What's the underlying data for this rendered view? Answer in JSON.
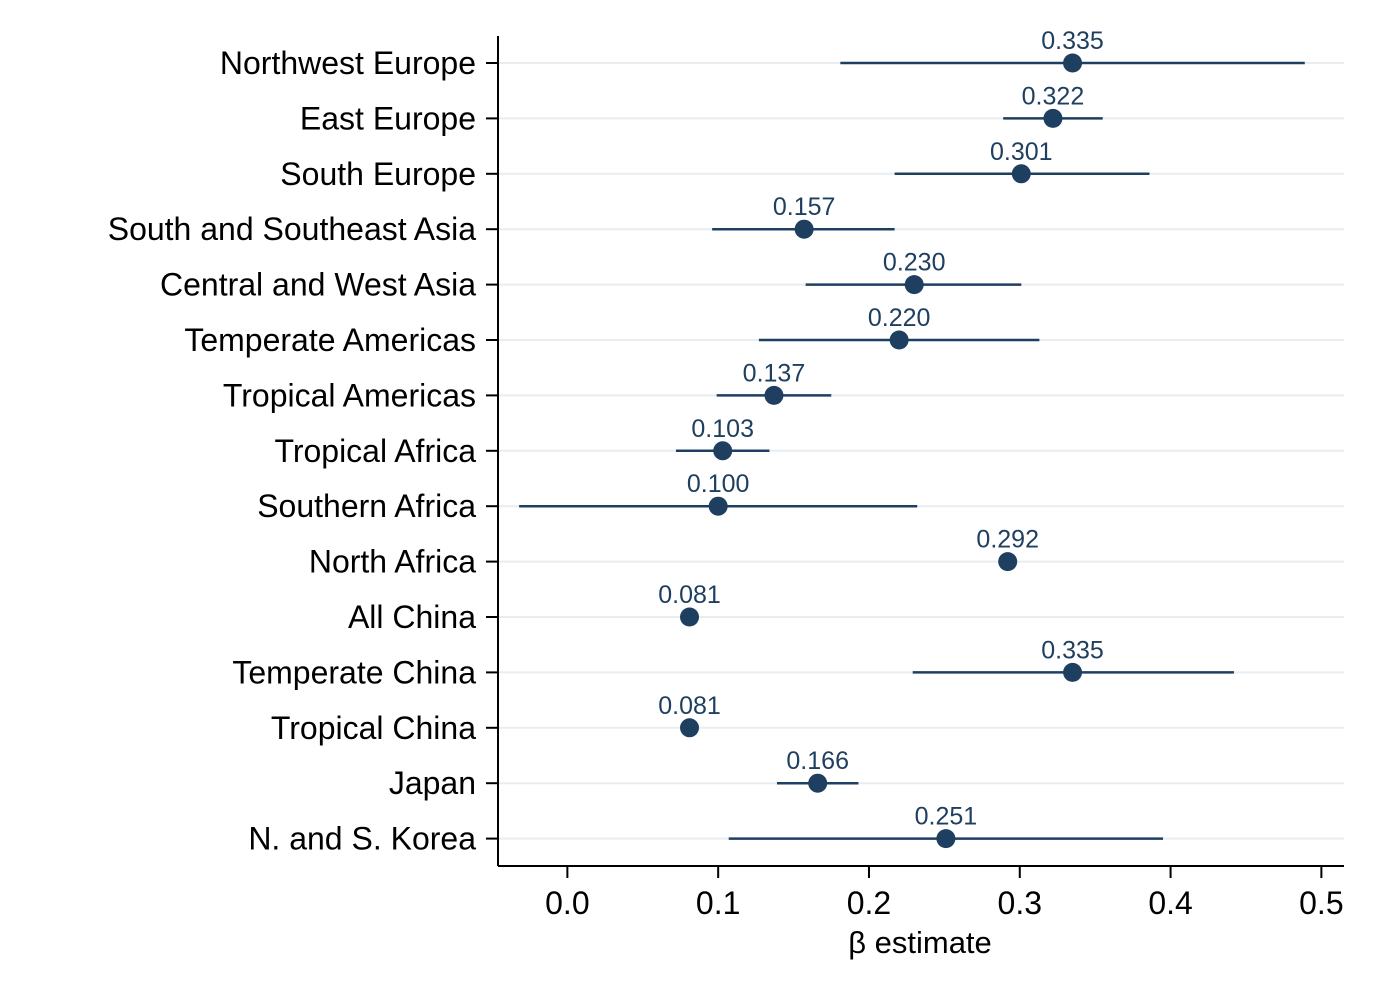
{
  "chart_data": {
    "type": "scatter",
    "orientation": "horizontal",
    "title": "",
    "xlabel": "β estimate",
    "ylabel": "",
    "xlim": [
      -0.046,
      0.515
    ],
    "xticks": [
      0.0,
      0.1,
      0.2,
      0.3,
      0.4,
      0.5
    ],
    "xtick_labels": [
      "0.0",
      "0.1",
      "0.2",
      "0.3",
      "0.4",
      "0.5"
    ],
    "grid": "horizontal",
    "legend": "none",
    "colors": {
      "marker": "#1f3f60",
      "grid": "#e8eef0",
      "axis": "#000000"
    },
    "points": [
      {
        "label": "Northwest Europe",
        "estimate": 0.335,
        "value_label": "0.335",
        "ci": [
          0.181,
          0.489
        ]
      },
      {
        "label": "East Europe",
        "estimate": 0.322,
        "value_label": "0.322",
        "ci": [
          0.289,
          0.355
        ]
      },
      {
        "label": "South Europe",
        "estimate": 0.301,
        "value_label": "0.301",
        "ci": [
          0.217,
          0.386
        ]
      },
      {
        "label": "South and Southeast Asia",
        "estimate": 0.157,
        "value_label": "0.157",
        "ci": [
          0.096,
          0.217
        ]
      },
      {
        "label": "Central and West Asia",
        "estimate": 0.23,
        "value_label": "0.230",
        "ci": [
          0.158,
          0.301
        ]
      },
      {
        "label": "Temperate Americas",
        "estimate": 0.22,
        "value_label": "0.220",
        "ci": [
          0.127,
          0.313
        ]
      },
      {
        "label": "Tropical Americas",
        "estimate": 0.137,
        "value_label": "0.137",
        "ci": [
          0.099,
          0.175
        ]
      },
      {
        "label": "Tropical Africa",
        "estimate": 0.103,
        "value_label": "0.103",
        "ci": [
          0.072,
          0.134
        ]
      },
      {
        "label": "Southern Africa",
        "estimate": 0.1,
        "value_label": "0.100",
        "ci": [
          -0.032,
          0.232
        ]
      },
      {
        "label": "North Africa",
        "estimate": 0.292,
        "value_label": "0.292",
        "ci": null
      },
      {
        "label": "All China",
        "estimate": 0.081,
        "value_label": "0.081",
        "ci": null
      },
      {
        "label": "Temperate China",
        "estimate": 0.335,
        "value_label": "0.335",
        "ci": [
          0.229,
          0.442
        ]
      },
      {
        "label": "Tropical China",
        "estimate": 0.081,
        "value_label": "0.081",
        "ci": null
      },
      {
        "label": "Japan",
        "estimate": 0.166,
        "value_label": "0.166",
        "ci": [
          0.139,
          0.193
        ]
      },
      {
        "label": "N. and S. Korea",
        "estimate": 0.251,
        "value_label": "0.251",
        "ci": [
          0.107,
          0.395
        ]
      }
    ]
  }
}
